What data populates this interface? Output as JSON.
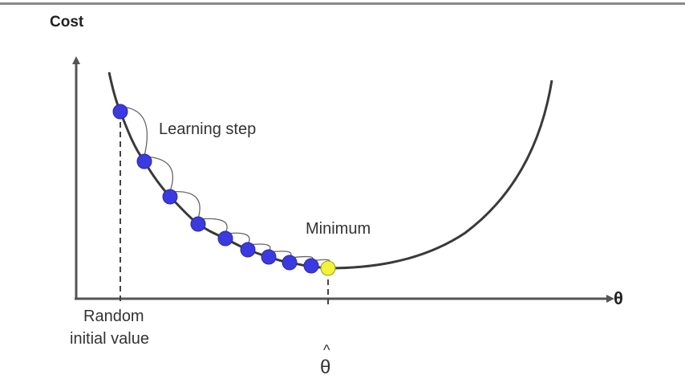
{
  "labels": {
    "y_axis": "Cost",
    "x_axis": "θ",
    "learning_step": "Learning step",
    "minimum": "Minimum",
    "random_initial_line1": "Random",
    "random_initial_line2": "initial value",
    "theta_hat_accent": "^",
    "theta_hat": "θ"
  },
  "colors": {
    "step_points": "#3a3ae0",
    "minimum_point": "#f2f23a",
    "curve": "#3a3a3a",
    "axes": "#555555"
  },
  "step_count": 9
}
